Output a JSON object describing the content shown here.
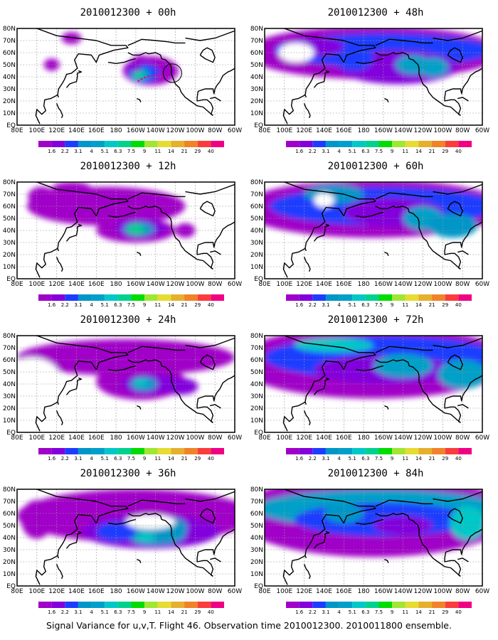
{
  "figure": {
    "caption": "Signal Variance for u,v,T. Flight 46. Observation time 2010012300. 2010011800 ensemble."
  },
  "map": {
    "lon_labels": [
      "80E",
      "100E",
      "120E",
      "140E",
      "160E",
      "180",
      "160W",
      "140W",
      "120W",
      "100W",
      "80W",
      "60W"
    ],
    "lat_labels": [
      "80N",
      "70N",
      "60N",
      "50N",
      "40N",
      "30N",
      "20N",
      "10N",
      "EQ"
    ]
  },
  "colorbar": {
    "labels": [
      "1.6",
      "2.2",
      "3.1",
      "4",
      "5.1",
      "6.3",
      "7.5",
      "9",
      "11",
      "14",
      "21",
      "29",
      "40"
    ],
    "colors": [
      "#a000c8",
      "#8200dc",
      "#1e3cff",
      "#0096c8",
      "#00a0c8",
      "#00c8c8",
      "#00d28c",
      "#00dc00",
      "#a0e632",
      "#e6dc32",
      "#e6af2d",
      "#f08228",
      "#fa3c3c",
      "#f00082"
    ]
  },
  "panels": [
    {
      "title": "2010012300 + 00h",
      "lead_hours": 0
    },
    {
      "title": "2010012300 + 48h",
      "lead_hours": 48
    },
    {
      "title": "2010012300 + 12h",
      "lead_hours": 12
    },
    {
      "title": "2010012300 + 60h",
      "lead_hours": 60
    },
    {
      "title": "2010012300 + 24h",
      "lead_hours": 24
    },
    {
      "title": "2010012300 + 72h",
      "lead_hours": 72
    },
    {
      "title": "2010012300 + 36h",
      "lead_hours": 36
    },
    {
      "title": "2010012300 + 84h",
      "lead_hours": 84
    }
  ]
}
